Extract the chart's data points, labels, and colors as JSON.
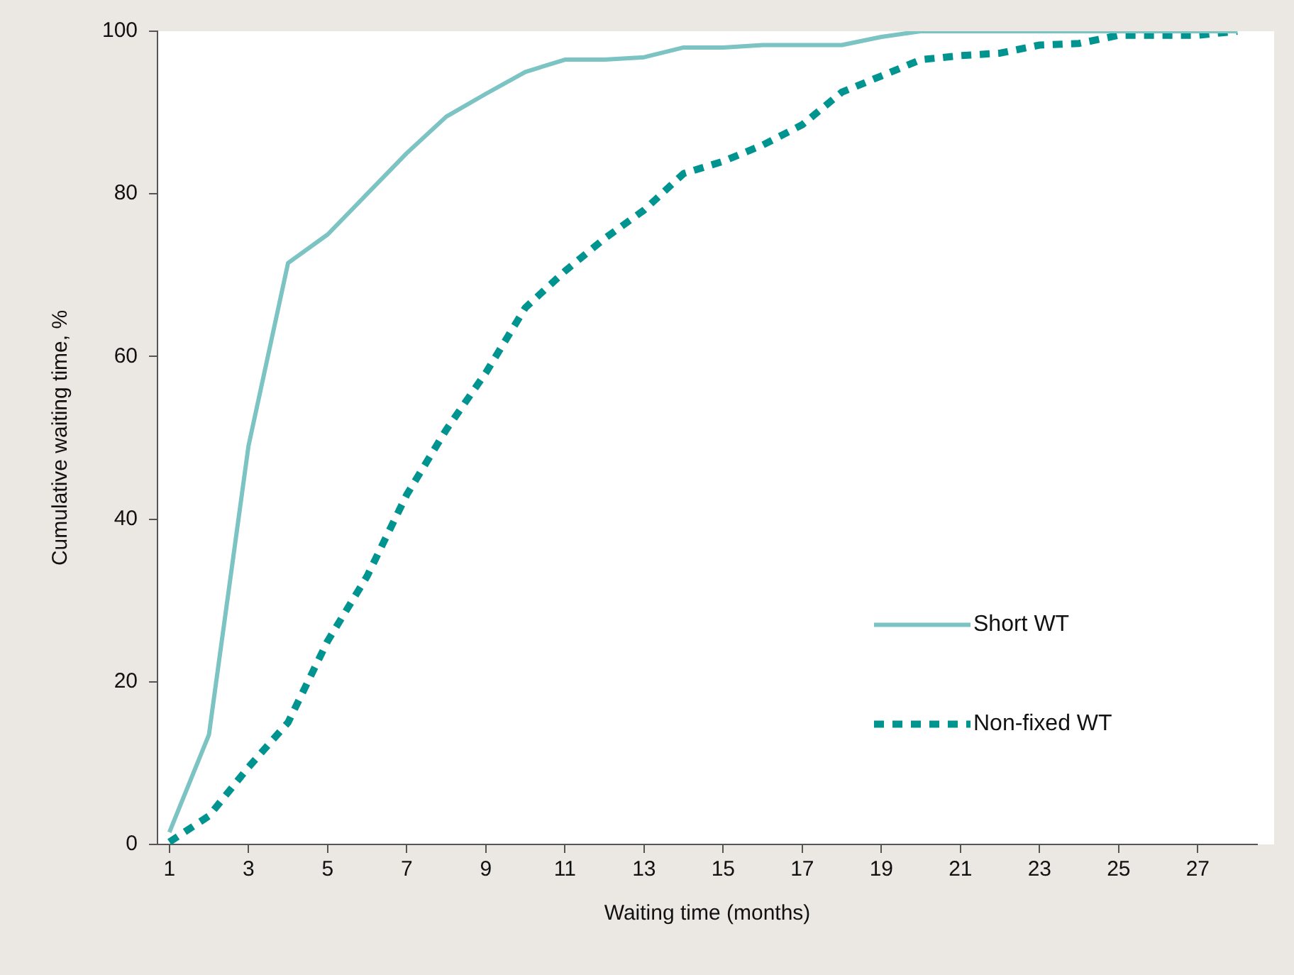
{
  "chart_data": {
    "type": "line",
    "xlabel": "Waiting time (months)",
    "ylabel": "Cumulative waiting time, %",
    "x": [
      1,
      2,
      3,
      4,
      5,
      6,
      7,
      8,
      9,
      10,
      11,
      12,
      13,
      14,
      15,
      16,
      17,
      18,
      19,
      20,
      21,
      22,
      23,
      24,
      25,
      26,
      27,
      28
    ],
    "xlim": [
      0.7,
      28.5
    ],
    "xticks": [
      1,
      3,
      5,
      7,
      9,
      11,
      13,
      15,
      17,
      19,
      21,
      23,
      25,
      27
    ],
    "ylim": [
      0,
      100
    ],
    "yticks": [
      0,
      20,
      40,
      60,
      80,
      100
    ],
    "grid": false,
    "legend": "right",
    "marker": "none",
    "series": [
      {
        "name": "Short WT",
        "color": "#7cc3c3",
        "line_style": "solid",
        "values": [
          1.5,
          13.5,
          49,
          71.5,
          75,
          80,
          85,
          89.5,
          92.3,
          95,
          96.5,
          96.5,
          96.8,
          98,
          98,
          98.3,
          98.3,
          98.3,
          99.3,
          100,
          100,
          100,
          100,
          100,
          100,
          100,
          100,
          100
        ]
      },
      {
        "name": "Non-fixed WT",
        "color": "#009490",
        "line_style": "dashed",
        "values": [
          0.3,
          3.5,
          9.5,
          15,
          25,
          33,
          43,
          51,
          58,
          66,
          70.5,
          74.5,
          78,
          82.5,
          84,
          86,
          88.5,
          92.5,
          94.5,
          96.5,
          97,
          97.3,
          98.3,
          98.5,
          99.5,
          99.5,
          99.5,
          100
        ]
      }
    ]
  }
}
